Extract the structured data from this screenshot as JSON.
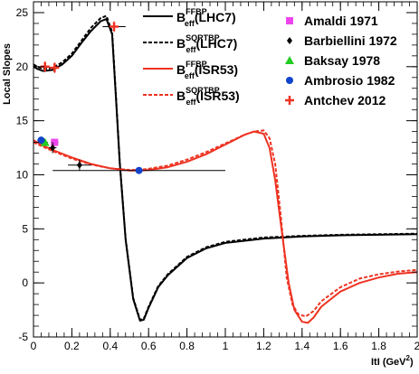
{
  "chart_data": {
    "type": "line",
    "ylabel": "Local Slopes",
    "xlabel": "|t| (GeV²)",
    "xlabel_main": "ItI (GeV",
    "xlabel_sup": "2",
    "xlabel_close": ")",
    "xlim": [
      0,
      2
    ],
    "ylim": [
      -5,
      26
    ],
    "x_ticks": [
      0,
      0.2,
      0.4,
      0.6,
      0.8,
      1,
      1.2,
      1.4,
      1.6,
      1.8,
      2
    ],
    "x_tick_labels": [
      "0",
      "0.2",
      "0.4",
      "0.6",
      "0.8",
      "1",
      "1.2",
      "1.4",
      "1.6",
      "1.8",
      "2"
    ],
    "y_ticks": [
      -5,
      0,
      5,
      10,
      15,
      20,
      25
    ],
    "y_tick_labels": [
      "-5",
      "0",
      "5",
      "10",
      "15",
      "20",
      "25"
    ],
    "grid": false,
    "series": [
      {
        "key": "ffbp_lhc7",
        "label_main": "B",
        "label_sup": "FFBP",
        "label_sub": "eff",
        "label_tail": "(LHC7)",
        "color": "#000000",
        "dash": "solid",
        "x": [
          0.0,
          0.02,
          0.05,
          0.1,
          0.15,
          0.2,
          0.25,
          0.3,
          0.35,
          0.38,
          0.41,
          0.43,
          0.45,
          0.48,
          0.52,
          0.555,
          0.575,
          0.6,
          0.65,
          0.7,
          0.8,
          0.9,
          1.0,
          1.2,
          1.4,
          1.6,
          1.8,
          2.0
        ],
        "y": [
          20.0,
          19.8,
          19.6,
          19.7,
          20.2,
          21.0,
          22.2,
          23.3,
          24.2,
          24.4,
          23.0,
          17.0,
          11.0,
          4.0,
          -1.5,
          -3.5,
          -3.4,
          -2.3,
          -0.4,
          0.7,
          2.3,
          3.2,
          3.7,
          4.1,
          4.3,
          4.4,
          4.45,
          4.5
        ]
      },
      {
        "key": "sqrtbp_lhc7",
        "label_main": "B",
        "label_sup": "SQRTBP",
        "label_sub": "eff",
        "label_tail": "(LHC7)",
        "color": "#000000",
        "dash": "dashed",
        "x": [
          0.0,
          0.02,
          0.05,
          0.1,
          0.15,
          0.2,
          0.25,
          0.3,
          0.35,
          0.38,
          0.41,
          0.43,
          0.45,
          0.48,
          0.52,
          0.555,
          0.575,
          0.6,
          0.65,
          0.7,
          0.8,
          0.9,
          1.0,
          1.2,
          1.4,
          1.6,
          1.8,
          2.0
        ],
        "y": [
          20.2,
          20.0,
          19.8,
          19.9,
          20.4,
          21.2,
          22.4,
          23.6,
          24.5,
          24.7,
          23.2,
          17.2,
          11.1,
          4.1,
          -1.4,
          -3.4,
          -3.3,
          -2.2,
          -0.3,
          0.8,
          2.4,
          3.3,
          3.8,
          4.2,
          4.35,
          4.45,
          4.5,
          4.55
        ]
      },
      {
        "key": "ffbp_isr53",
        "label_main": "B",
        "label_sup": "FFBP",
        "label_sub": "eff",
        "label_tail": "(ISR53)",
        "color": "#ee3322",
        "dash": "solid",
        "x": [
          0.0,
          0.05,
          0.1,
          0.2,
          0.3,
          0.4,
          0.5,
          0.55,
          0.6,
          0.7,
          0.8,
          0.9,
          1.0,
          1.1,
          1.15,
          1.2,
          1.23,
          1.26,
          1.3,
          1.33,
          1.36,
          1.4,
          1.43,
          1.46,
          1.5,
          1.6,
          1.7,
          1.8,
          1.9,
          2.0
        ],
        "y": [
          13.2,
          12.7,
          12.3,
          11.6,
          11.0,
          10.6,
          10.4,
          10.4,
          10.45,
          10.7,
          11.2,
          11.9,
          12.8,
          13.7,
          14.0,
          13.8,
          12.5,
          9.5,
          4.0,
          0.0,
          -2.5,
          -3.6,
          -3.7,
          -3.2,
          -2.2,
          -0.8,
          0.0,
          0.5,
          0.85,
          1.0
        ]
      },
      {
        "key": "sqrtbp_isr53",
        "label_main": "B",
        "label_sup": "SQRTBP",
        "label_sub": "eff",
        "label_tail": "(ISR53)",
        "color": "#ee3322",
        "dash": "dashed",
        "x": [
          0.0,
          0.05,
          0.1,
          0.2,
          0.3,
          0.4,
          0.5,
          0.55,
          0.6,
          0.7,
          0.8,
          0.9,
          1.0,
          1.1,
          1.15,
          1.2,
          1.23,
          1.26,
          1.29,
          1.32,
          1.35,
          1.38,
          1.42,
          1.46,
          1.5,
          1.6,
          1.7,
          1.8,
          1.9,
          2.0
        ],
        "y": [
          13.0,
          12.6,
          12.2,
          11.5,
          10.95,
          10.6,
          10.45,
          10.45,
          10.55,
          10.85,
          11.4,
          12.1,
          12.9,
          13.7,
          14.0,
          14.1,
          13.4,
          11.0,
          6.0,
          0.5,
          -2.0,
          -2.9,
          -3.1,
          -2.6,
          -1.7,
          -0.4,
          0.4,
          0.8,
          1.05,
          1.2
        ]
      }
    ],
    "markers": [
      {
        "key": "amaldi_1971",
        "label": "Amaldi 1971",
        "color": "#ee44ee",
        "shape": "square",
        "points": [
          {
            "x": 0.11,
            "y": 13.0,
            "xerr": 0.02,
            "yerr": 0.3
          }
        ]
      },
      {
        "key": "barbiellini_1972",
        "label": "Barbiellini 1972",
        "color": "#000000",
        "shape": "diamond",
        "points": [
          {
            "x": 0.1,
            "y": 12.5,
            "xerr": 0.02,
            "yerr": 0.5
          },
          {
            "x": 0.24,
            "y": 10.9,
            "xerr": 0.06,
            "yerr": 0.5
          }
        ]
      },
      {
        "key": "baksay_1978",
        "label": "Baksay 1978",
        "color": "#22cc22",
        "shape": "triangle",
        "points": [
          {
            "x": 0.06,
            "y": 13.0,
            "xerr": 0.015,
            "yerr": 0.2
          }
        ]
      },
      {
        "key": "ambrosio_1982",
        "label": "Ambrosio 1982",
        "color": "#1144cc",
        "shape": "circle",
        "points": [
          {
            "x": 0.04,
            "y": 13.2,
            "xerr": 0.02,
            "yerr": 0.3
          },
          {
            "x": 0.55,
            "y": 10.4,
            "xerr": 0.45,
            "yerr": 0.2
          }
        ]
      },
      {
        "key": "antchev_2012",
        "label": "Antchev 2012",
        "color": "#ee3322",
        "shape": "cross",
        "points": [
          {
            "x": 0.06,
            "y": 20.0,
            "xerr": 0.015,
            "yerr": 0.5
          },
          {
            "x": 0.11,
            "y": 19.9,
            "xerr": 0.02,
            "yerr": 0.5
          },
          {
            "x": 0.42,
            "y": 23.7,
            "xerr": 0.06,
            "yerr": 0.5
          }
        ]
      }
    ]
  }
}
